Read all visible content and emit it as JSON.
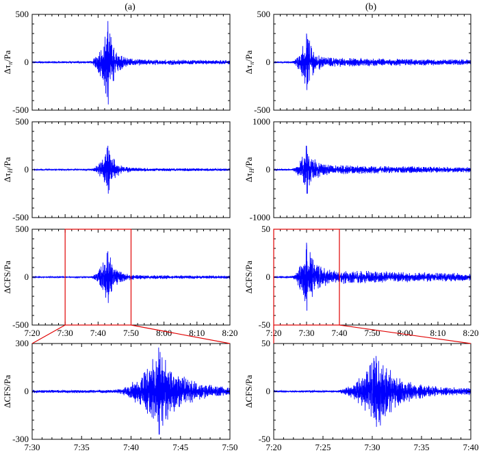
{
  "columns": [
    "(a)",
    "(b)"
  ],
  "colors": {
    "trace": "#0000ff",
    "zoom_box": "#e00000",
    "axis": "#000000",
    "background": "#ffffff"
  },
  "chart_data": [
    {
      "id": "a1",
      "type": "line",
      "column": "(a)",
      "ylabel_main": "Δτ",
      "ylabel_sub": "n",
      "ylabel_unit": "/Pa",
      "x_range": [
        "7:20",
        "8:20"
      ],
      "x_ticks": [
        "7:20",
        "7:30",
        "7:40",
        "7:50",
        "8:00",
        "8:10",
        "8:20"
      ],
      "show_x_tick_labels": false,
      "ylim": [
        -500,
        500
      ],
      "y_ticks": [
        "500",
        "0",
        "-500"
      ],
      "series": [
        {
          "values": [],
          "signal": {
            "peak_time": "7:43",
            "peak_amplitude": 430,
            "min": -440,
            "noise_amplitude": 10,
            "coda_amplitude": 25,
            "onset": "7:37",
            "coda_end": "8:20"
          }
        }
      ],
      "grid": false
    },
    {
      "id": "b1",
      "type": "line",
      "column": "(b)",
      "ylabel_main": "Δτ",
      "ylabel_sub": "n",
      "ylabel_unit": "/Pa",
      "x_range": [
        "7:20",
        "8:20"
      ],
      "x_ticks": [
        "7:20",
        "7:30",
        "7:40",
        "7:50",
        "8:00",
        "8:10",
        "8:20"
      ],
      "show_x_tick_labels": false,
      "ylim": [
        -500,
        500
      ],
      "y_ticks": [
        "500",
        "0",
        "-500"
      ],
      "series": [
        {
          "values": [],
          "signal": {
            "peak_time": "7:30",
            "peak_amplitude": 300,
            "min": -290,
            "noise_amplitude": 8,
            "coda_amplitude": 45,
            "onset": "7:25",
            "coda_end": "8:20"
          }
        }
      ],
      "grid": false
    },
    {
      "id": "a2",
      "type": "line",
      "column": "(a)",
      "ylabel_main": "Δτ",
      "ylabel_sub": "H",
      "ylabel_unit": "/Pa",
      "x_range": [
        "7:20",
        "8:20"
      ],
      "x_ticks": [
        "7:20",
        "7:30",
        "7:40",
        "7:50",
        "8:00",
        "8:10",
        "8:20"
      ],
      "show_x_tick_labels": false,
      "ylim": [
        -500,
        500
      ],
      "y_ticks": [
        "500",
        "0",
        "-500"
      ],
      "series": [
        {
          "values": [],
          "signal": {
            "peak_time": "7:43",
            "peak_amplitude": 250,
            "min": -250,
            "noise_amplitude": 6,
            "coda_amplitude": 15,
            "onset": "7:37",
            "coda_end": "8:20"
          }
        }
      ],
      "grid": false
    },
    {
      "id": "b2",
      "type": "line",
      "column": "(b)",
      "ylabel_main": "Δτ",
      "ylabel_sub": "H",
      "ylabel_unit": "/Pa",
      "x_range": [
        "7:20",
        "8:20"
      ],
      "x_ticks": [
        "7:20",
        "7:30",
        "7:40",
        "7:50",
        "8:00",
        "8:10",
        "8:20"
      ],
      "show_x_tick_labels": false,
      "ylim": [
        -1000,
        1000
      ],
      "y_ticks": [
        "1000",
        "0",
        "-1000"
      ],
      "series": [
        {
          "values": [],
          "signal": {
            "peak_time": "7:30",
            "peak_amplitude": 500,
            "min": -500,
            "noise_amplitude": 15,
            "coda_amplitude": 90,
            "onset": "7:25",
            "coda_end": "8:20"
          }
        }
      ],
      "grid": false
    },
    {
      "id": "a3",
      "type": "line",
      "column": "(a)",
      "ylabel_main": "ΔCFS",
      "ylabel_sub": "",
      "ylabel_unit": "/Pa",
      "x_range": [
        "7:20",
        "8:20"
      ],
      "x_ticks": [
        "7:20",
        "7:30",
        "7:40",
        "7:50",
        "8:00",
        "8:10",
        "8:20"
      ],
      "show_x_tick_labels": true,
      "ylim": [
        -500,
        500
      ],
      "y_ticks": [
        "500",
        "0",
        "-500"
      ],
      "series": [
        {
          "values": [],
          "signal": {
            "peak_time": "7:43",
            "peak_amplitude": 270,
            "min": -270,
            "noise_amplitude": 6,
            "coda_amplitude": 20,
            "onset": "7:37",
            "coda_end": "8:20"
          }
        }
      ],
      "zoom_window": [
        "7:30",
        "7:50"
      ],
      "grid": false
    },
    {
      "id": "b3",
      "type": "line",
      "column": "(b)",
      "ylabel_main": "ΔCFS",
      "ylabel_sub": "",
      "ylabel_unit": "/Pa",
      "x_range": [
        "7:20",
        "8:20"
      ],
      "x_ticks": [
        "7:20",
        "7:30",
        "7:40",
        "7:50",
        "8:00",
        "8:10",
        "8:20"
      ],
      "show_x_tick_labels": true,
      "ylim": [
        -50,
        50
      ],
      "y_ticks": [
        "50",
        "0",
        "-50"
      ],
      "series": [
        {
          "values": [],
          "signal": {
            "peak_time": "7:30",
            "peak_amplitude": 36,
            "min": -35,
            "noise_amplitude": 1,
            "coda_amplitude": 7,
            "onset": "7:25",
            "coda_end": "8:20"
          }
        }
      ],
      "zoom_window": [
        "7:20",
        "7:40"
      ],
      "grid": false
    },
    {
      "id": "a4",
      "type": "line",
      "column": "(a)",
      "ylabel_main": "ΔCFS",
      "ylabel_sub": "",
      "ylabel_unit": "/Pa",
      "x_range": [
        "7:30",
        "7:50"
      ],
      "x_ticks": [
        "7:30",
        "7:35",
        "7:40",
        "7:45",
        "7:50"
      ],
      "show_x_tick_labels": true,
      "ylim": [
        -300,
        300
      ],
      "y_ticks": [
        "300",
        "0",
        "-300"
      ],
      "series": [
        {
          "values": [],
          "signal": {
            "peak_time": "7:42.8",
            "peak_amplitude": 275,
            "min": -270,
            "noise_amplitude": 10,
            "coda_amplitude": 25,
            "onset": "7:38",
            "coda_end": "7:50"
          }
        }
      ],
      "grid": false
    },
    {
      "id": "b4",
      "type": "line",
      "column": "(b)",
      "ylabel_main": "ΔCFS",
      "ylabel_sub": "",
      "ylabel_unit": "/Pa",
      "x_range": [
        "7:20",
        "7:40"
      ],
      "x_ticks": [
        "7:20",
        "7:25",
        "7:30",
        "7:35",
        "7:40"
      ],
      "show_x_tick_labels": true,
      "ylim": [
        -50,
        50
      ],
      "y_ticks": [
        "50",
        "0",
        "-50"
      ],
      "series": [
        {
          "values": [],
          "signal": {
            "peak_time": "7:30.4",
            "peak_amplitude": 37,
            "min": -37,
            "noise_amplitude": 1,
            "coda_amplitude": 5,
            "onset": "7:26",
            "coda_end": "7:40"
          }
        }
      ],
      "grid": false
    }
  ]
}
